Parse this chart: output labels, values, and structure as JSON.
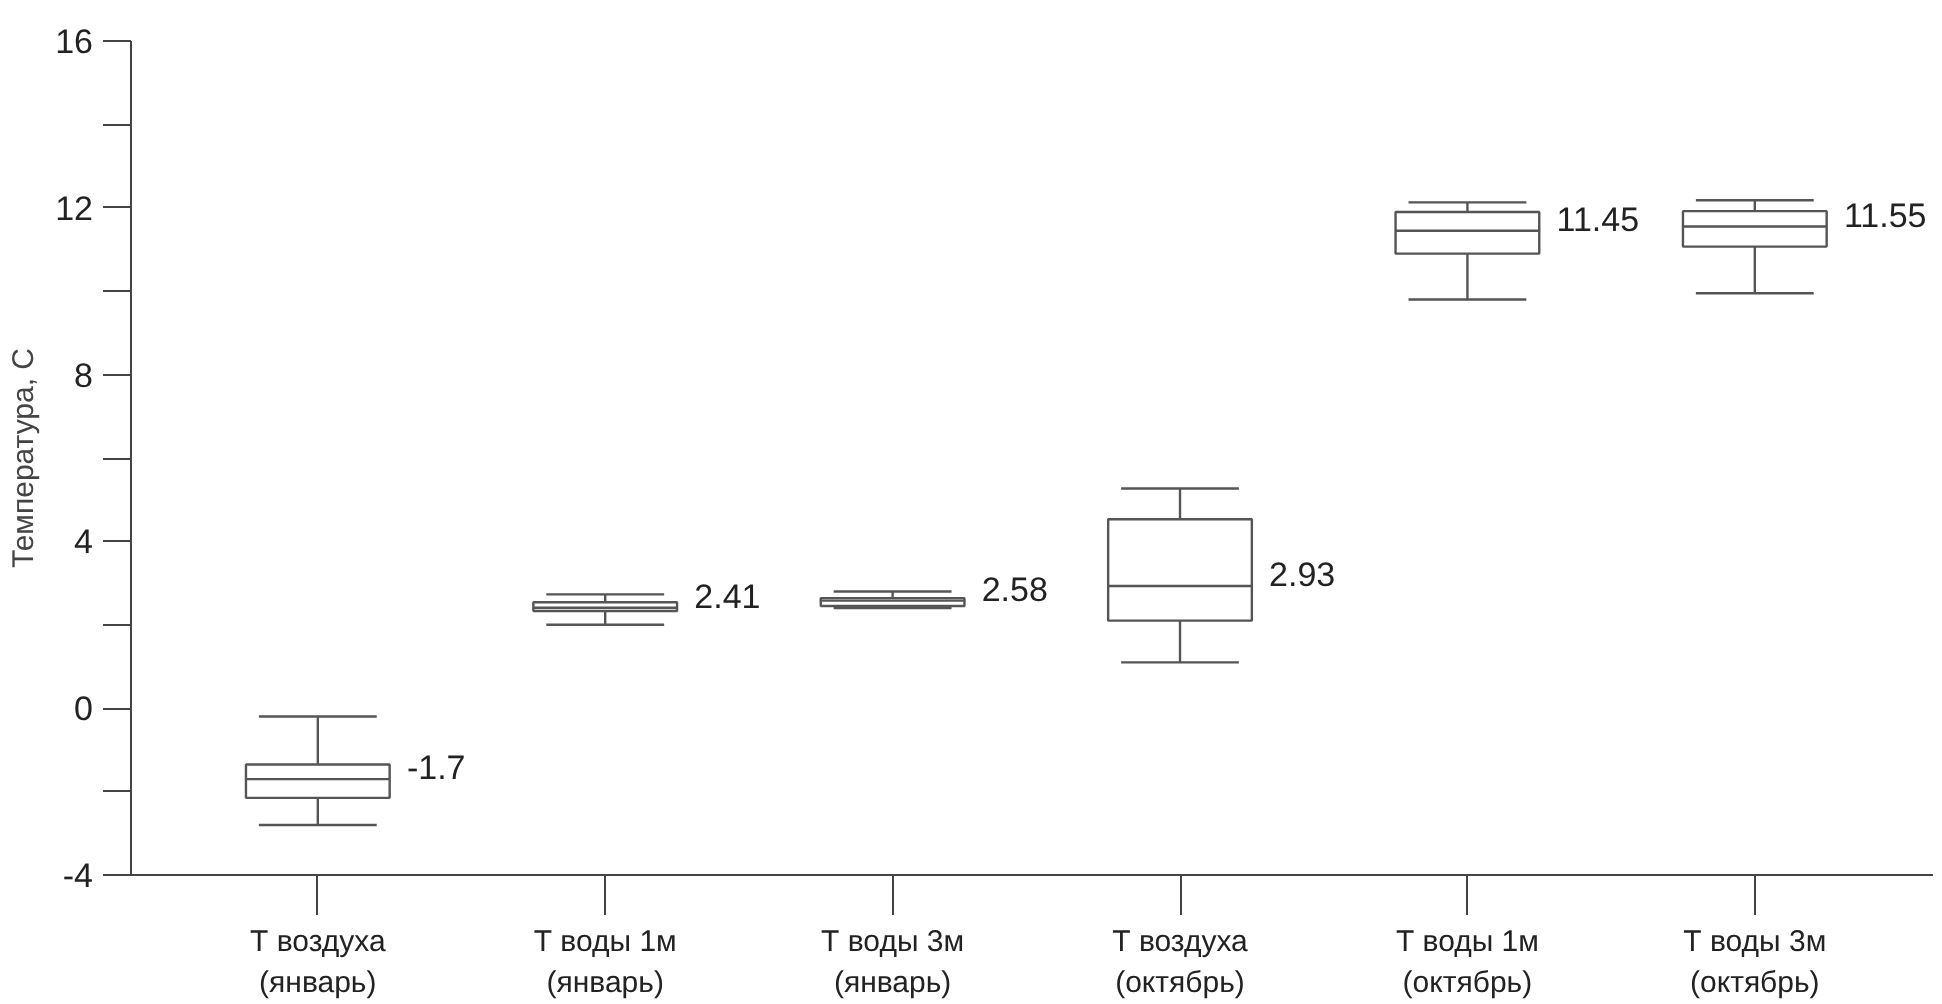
{
  "chart_data": {
    "type": "box",
    "ylabel": "Температура, С",
    "categories": [
      "Т воздуха\n(январь)",
      "Т воды 1м\n(январь)",
      "Т воды 3м\n(январь)",
      "Т воздуха\n(октябрь)",
      "Т воды 1м\n(октябрь)",
      "Т воды 3м\n(октябрь)"
    ],
    "boxes": [
      {
        "low": -2.8,
        "q1": -2.15,
        "median": -1.7,
        "q3": -1.35,
        "high": -0.2
      },
      {
        "low": 2.0,
        "q1": 2.33,
        "median": 2.41,
        "q3": 2.54,
        "high": 2.73
      },
      {
        "low": 2.4,
        "q1": 2.45,
        "median": 2.58,
        "q3": 2.64,
        "high": 2.8
      },
      {
        "low": 1.1,
        "q1": 2.1,
        "median": 2.93,
        "q3": 4.53,
        "high": 5.27
      },
      {
        "low": 9.8,
        "q1": 10.9,
        "median": 11.45,
        "q3": 11.9,
        "high": 12.13
      },
      {
        "low": 9.95,
        "q1": 11.07,
        "median": 11.55,
        "q3": 11.92,
        "high": 12.18
      }
    ],
    "value_labels": [
      "-1.7",
      "2.41",
      "2.58",
      "2.93",
      "11.45",
      "11.55"
    ],
    "color": "#555555",
    "ylim": [
      -4,
      16
    ],
    "yticks": [
      -4,
      {
        "value": -2,
        "label": null
      },
      0,
      {
        "value": 2,
        "label": null
      },
      4,
      {
        "value": 6,
        "label": null
      },
      8,
      {
        "value": 10,
        "label": null
      },
      12,
      {
        "value": 14,
        "label": null
      },
      16
    ],
    "grid": false
  }
}
